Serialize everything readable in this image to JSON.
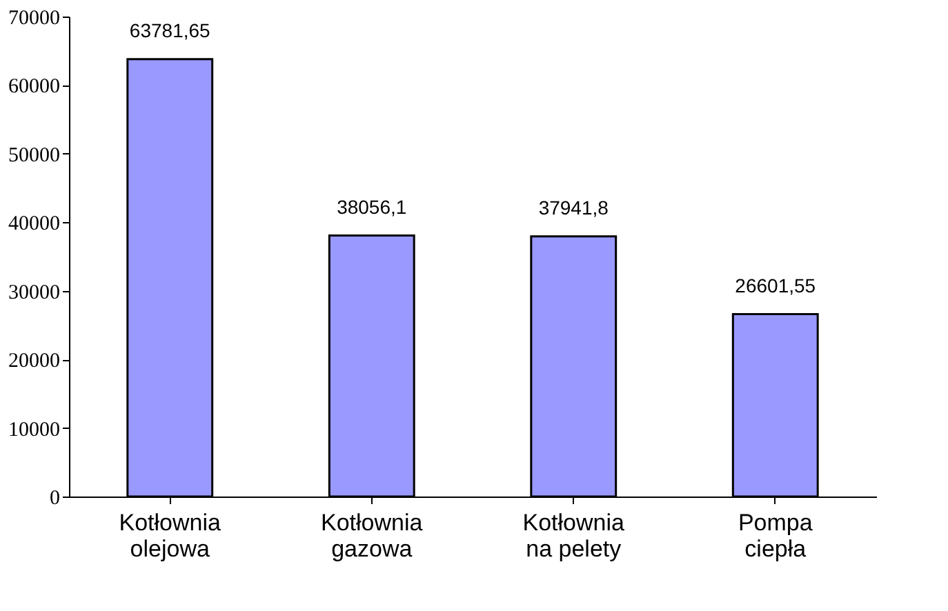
{
  "chart_data": {
    "type": "bar",
    "categories": [
      "Kotłownia olejowa",
      "Kotłownia gazowa",
      "Kotłownia na pelety",
      "Pompa ciepła"
    ],
    "values": [
      63781.65,
      38056.1,
      37941.8,
      26601.55
    ],
    "value_labels": [
      "63781,65",
      "38056,1",
      "37941,8",
      "26601,55"
    ],
    "color": "#9999ff",
    "ylim": [
      0,
      70000
    ],
    "yticks": [
      0,
      10000,
      20000,
      30000,
      40000,
      50000,
      60000,
      70000
    ],
    "grid": false
  }
}
